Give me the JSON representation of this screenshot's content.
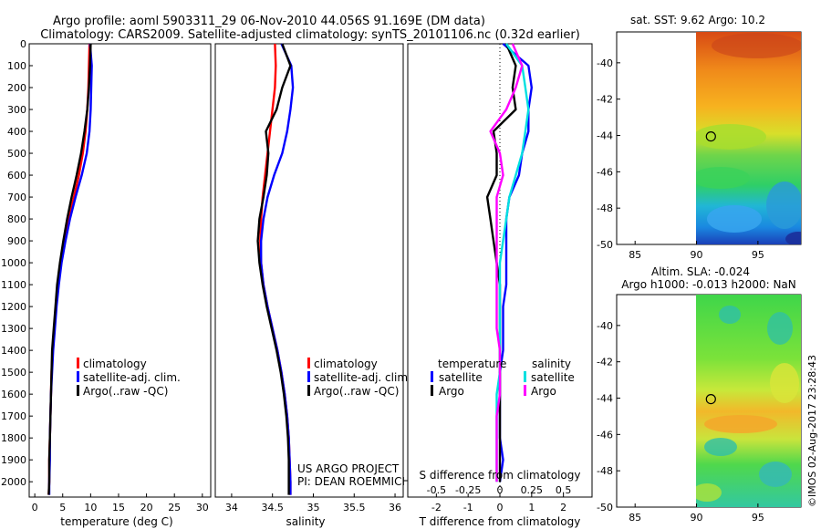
{
  "header": {
    "line1": "Argo profile: aoml 5903311_29 06-Nov-2010 44.056S 91.169E (DM data)",
    "line2": "Climatology: CARS2009. Satellite-adjusted climatology: synTS_20101106.nc (0.32d earlier)"
  },
  "side_label": "©IMOS 02-Aug-2017 23:28:43",
  "project_note": {
    "line1": "US ARGO PROJECT",
    "line2": "PI: DEAN ROEMMICH"
  },
  "colors": {
    "climatology": "#ff0000",
    "satellite": "#0000ff",
    "argo": "#000000",
    "sal_satellite": "#00e0e0",
    "sal_argo": "#ff00ff"
  },
  "chart_data": [
    {
      "type": "line",
      "xlabel": "temperature (deg C)",
      "ylabel": "",
      "xlim": [
        -1,
        31.5
      ],
      "ylim": [
        2070,
        0
      ],
      "xticks": [
        0,
        5,
        10,
        15,
        20,
        25,
        30
      ],
      "yticks": [
        0,
        100,
        200,
        300,
        400,
        500,
        600,
        700,
        800,
        900,
        1000,
        1100,
        1200,
        1300,
        1400,
        1500,
        1600,
        1700,
        1800,
        1900,
        2000
      ],
      "legend": {
        "position": "center-bottom",
        "entries": [
          "climatology",
          "satellite-adj. clim.",
          "Argo(..raw -QC)"
        ]
      },
      "series": [
        {
          "name": "climatology",
          "color": "#ff0000",
          "x": [
            9.8,
            9.7,
            9.6,
            9.4,
            9.1,
            8.6,
            7.9,
            7.0,
            6.1,
            5.3,
            4.6,
            4.1,
            3.8,
            3.5,
            3.2,
            3.0,
            2.9,
            2.8,
            2.7,
            2.6,
            2.6,
            2.5
          ],
          "y": [
            0,
            100,
            200,
            300,
            400,
            500,
            600,
            700,
            800,
            900,
            1000,
            1100,
            1200,
            1300,
            1400,
            1500,
            1600,
            1700,
            1800,
            1900,
            2000,
            2060
          ]
        },
        {
          "name": "satellite-adj. clim.",
          "color": "#0000ff",
          "x": [
            9.9,
            10.2,
            10.1,
            10.0,
            9.8,
            9.3,
            8.4,
            7.3,
            6.3,
            5.5,
            4.8,
            4.3,
            3.9,
            3.6,
            3.3,
            3.1,
            2.9,
            2.8,
            2.7,
            2.7,
            2.6,
            2.6
          ],
          "y": [
            0,
            100,
            200,
            300,
            400,
            500,
            600,
            700,
            800,
            900,
            1000,
            1100,
            1200,
            1300,
            1400,
            1500,
            1600,
            1700,
            1800,
            1900,
            2000,
            2060
          ]
        },
        {
          "name": "Argo(..raw -QC)",
          "color": "#000000",
          "x": [
            10.0,
            9.9,
            9.7,
            9.4,
            8.9,
            8.3,
            7.5,
            6.6,
            5.8,
            5.1,
            4.5,
            4.0,
            3.7,
            3.4,
            3.1,
            3.0,
            2.9,
            2.8,
            2.7,
            2.6,
            2.6,
            2.5
          ],
          "y": [
            0,
            100,
            200,
            300,
            400,
            500,
            600,
            700,
            800,
            900,
            1000,
            1100,
            1200,
            1300,
            1400,
            1500,
            1600,
            1700,
            1800,
            1900,
            2000,
            2060
          ]
        }
      ]
    },
    {
      "type": "line",
      "xlabel": "salinity",
      "ylabel": "",
      "xlim": [
        33.8,
        36.1
      ],
      "ylim": [
        2070,
        0
      ],
      "xticks": [
        34,
        34.5,
        35,
        35.5,
        36
      ],
      "legend": {
        "position": "center-bottom",
        "entries": [
          "climatology",
          "satellite-adj. clim.",
          "Argo(..raw -QC)"
        ]
      },
      "series": [
        {
          "name": "climatology",
          "color": "#ff0000",
          "x": [
            34.53,
            34.54,
            34.53,
            34.5,
            34.47,
            34.44,
            34.41,
            34.38,
            34.36,
            34.35,
            34.36,
            34.39,
            34.44,
            34.5,
            34.56,
            34.61,
            34.65,
            34.68,
            34.7,
            34.71,
            34.72,
            34.72
          ],
          "y": [
            0,
            100,
            200,
            300,
            400,
            500,
            600,
            700,
            800,
            900,
            1000,
            1100,
            1200,
            1300,
            1400,
            1500,
            1600,
            1700,
            1800,
            1900,
            2000,
            2060
          ]
        },
        {
          "name": "satellite-adj. clim.",
          "color": "#0000ff",
          "x": [
            34.61,
            34.73,
            34.75,
            34.72,
            34.68,
            34.62,
            34.52,
            34.44,
            34.39,
            34.36,
            34.36,
            34.39,
            34.44,
            34.5,
            34.56,
            34.61,
            34.65,
            34.68,
            34.7,
            34.71,
            34.72,
            34.72
          ],
          "y": [
            0,
            100,
            200,
            300,
            400,
            500,
            600,
            700,
            800,
            900,
            1000,
            1100,
            1200,
            1300,
            1400,
            1500,
            1600,
            1700,
            1800,
            1900,
            2000,
            2060
          ]
        },
        {
          "name": "Argo(..raw -QC)",
          "color": "#000000",
          "x": [
            34.62,
            34.72,
            34.62,
            34.55,
            34.42,
            34.45,
            34.43,
            34.39,
            34.34,
            34.32,
            34.34,
            34.38,
            34.43,
            34.49,
            34.55,
            34.6,
            34.64,
            34.67,
            34.69,
            34.7,
            34.7,
            34.7
          ],
          "y": [
            0,
            100,
            200,
            300,
            400,
            500,
            600,
            700,
            800,
            900,
            1000,
            1100,
            1200,
            1300,
            1400,
            1500,
            1600,
            1700,
            1800,
            1900,
            2000,
            2060
          ]
        }
      ]
    },
    {
      "type": "line",
      "xlabel": "T difference from climatology",
      "xlabel2": "S difference from climatology",
      "xlim": [
        -2.9,
        2.9
      ],
      "ylim": [
        2070,
        0
      ],
      "xticks": [
        -2,
        -1,
        0,
        1,
        2
      ],
      "xticks_top_labels": [
        "-0.5",
        "-0.25",
        "0",
        "0.25",
        "0.5"
      ],
      "xticks_top_positions": [
        -2,
        -1,
        0,
        1,
        2
      ],
      "legend": {
        "position": "center-bottom",
        "groups": [
          {
            "title": "temperature",
            "entries": [
              "satellite",
              "Argo"
            ]
          },
          {
            "title": "salinity",
            "entries": [
              "satellite",
              "Argo"
            ]
          }
        ]
      },
      "series": [
        {
          "name": "satellite",
          "group": "temperature",
          "color": "#0000ff",
          "x": [
            0.1,
            0.9,
            1.0,
            0.9,
            0.9,
            0.7,
            0.6,
            0.3,
            0.2,
            0.2,
            0.2,
            0.2,
            0.1,
            0.1,
            0.1,
            0.0,
            0.0,
            0.0,
            0.0,
            0.1,
            0.0
          ],
          "y": [
            0,
            100,
            200,
            300,
            400,
            500,
            600,
            700,
            800,
            900,
            1000,
            1100,
            1200,
            1300,
            1400,
            1500,
            1600,
            1700,
            1800,
            1900,
            2000
          ]
        },
        {
          "name": "Argo",
          "group": "temperature",
          "color": "#000000",
          "x": [
            0.2,
            0.5,
            0.4,
            0.5,
            -0.2,
            -0.1,
            -0.1,
            -0.4,
            -0.3,
            -0.2,
            -0.1,
            0.0,
            0.0,
            0.0,
            0.0,
            0.0,
            0.0,
            0.0,
            0.0,
            0.0,
            0.0
          ],
          "y": [
            0,
            100,
            200,
            300,
            400,
            500,
            600,
            700,
            800,
            900,
            1000,
            1100,
            1200,
            1300,
            1400,
            1500,
            1600,
            1700,
            1800,
            1900,
            2000
          ]
        },
        {
          "name": "satellite",
          "group": "salinity",
          "color": "#00e0e0",
          "x": [
            0.2,
            0.7,
            0.8,
            0.9,
            0.8,
            0.7,
            0.5,
            0.3,
            0.2,
            0.1,
            0.0,
            0.0,
            0.0,
            0.0,
            0.0,
            0.0,
            -0.1,
            -0.1,
            -0.1,
            -0.1,
            -0.1
          ],
          "y": [
            0,
            100,
            200,
            300,
            400,
            500,
            600,
            700,
            800,
            900,
            1000,
            1100,
            1200,
            1300,
            1400,
            1500,
            1600,
            1700,
            1800,
            1900,
            2000
          ]
        },
        {
          "name": "Argo",
          "group": "salinity",
          "color": "#ff00ff",
          "x": [
            0.4,
            0.7,
            0.5,
            0.2,
            -0.3,
            0.0,
            0.1,
            -0.1,
            -0.1,
            -0.1,
            -0.1,
            -0.1,
            -0.1,
            -0.1,
            0.0,
            0.0,
            0.0,
            -0.1,
            -0.1,
            -0.1,
            -0.1
          ],
          "y": [
            0,
            100,
            200,
            300,
            400,
            500,
            600,
            700,
            800,
            900,
            1000,
            1100,
            1200,
            1300,
            1400,
            1500,
            1600,
            1700,
            1800,
            1900,
            2000
          ]
        }
      ]
    },
    {
      "type": "heatmap",
      "title": "sat. SST: 9.62 Argo: 10.2",
      "xlim": [
        83.5,
        98.5
      ],
      "ylim": [
        -50,
        -38.3
      ],
      "xticks": [
        85,
        90,
        95
      ],
      "yticks": [
        -40,
        -42,
        -44,
        -46,
        -48,
        -50
      ],
      "data_extent_x": [
        90,
        98.5
      ],
      "marker": {
        "x": 91.169,
        "y": -44.056
      }
    },
    {
      "type": "heatmap",
      "title": "Altim. SLA: -0.024",
      "subtitle": "Argo h1000: -0.013 h2000: NaN",
      "xlim": [
        83.5,
        98.5
      ],
      "ylim": [
        -50,
        -38.3
      ],
      "xticks": [
        85,
        90,
        95
      ],
      "yticks": [
        -40,
        -42,
        -44,
        -46,
        -48,
        -50
      ],
      "data_extent_x": [
        90,
        98.5
      ],
      "marker": {
        "x": 91.169,
        "y": -44.056
      }
    }
  ]
}
